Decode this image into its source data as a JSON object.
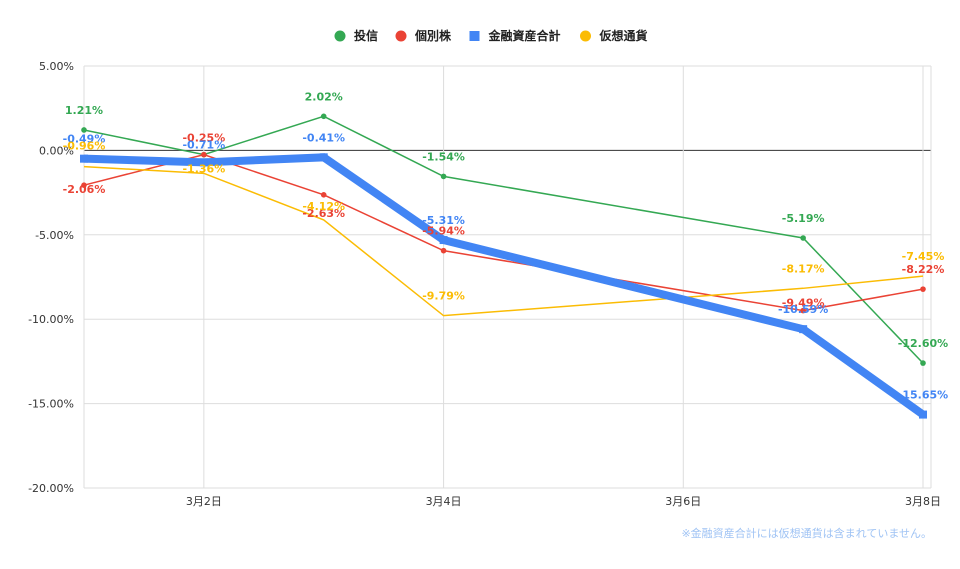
{
  "chart_data": {
    "type": "line",
    "ylim": [
      -20,
      5
    ],
    "y_ticks": [
      5,
      0,
      -5,
      -10,
      -15,
      -20
    ],
    "y_tick_labels": [
      "5.00%",
      "0.00%",
      "-5.00%",
      "-10.00%",
      "-15.00%",
      "-20.00%"
    ],
    "x_ticks": [
      2,
      4,
      6,
      8
    ],
    "x_tick_labels": [
      "3月2日",
      "3月4日",
      "3月6日",
      "3月8日"
    ],
    "xlim": [
      1,
      8
    ],
    "x": [
      1,
      2,
      3,
      4,
      7,
      8
    ],
    "grid": true,
    "legend_position": "top",
    "series": [
      {
        "name": "投信",
        "color": "#34a853",
        "width": 1.5,
        "marker": "circle",
        "values": [
          1.21,
          -0.25,
          2.02,
          -1.54,
          -5.19,
          -12.6
        ],
        "labels": [
          "1.21%",
          "",
          "2.02%",
          "-1.54%",
          "-5.19%",
          "-12.60%"
        ]
      },
      {
        "name": "個別株",
        "color": "#ea4335",
        "width": 1.5,
        "marker": "circle",
        "values": [
          -2.06,
          -0.25,
          -2.63,
          -5.94,
          -9.49,
          -8.22
        ],
        "labels": [
          "-2.06%",
          "-0.25%",
          "-2.63%",
          "-5.94%",
          "-9.49%",
          "-8.22%"
        ]
      },
      {
        "name": "金融資産合計",
        "color": "#4285f4",
        "width": 8,
        "marker": "square",
        "values": [
          -0.49,
          -0.71,
          -0.41,
          -5.31,
          -10.59,
          -15.65
        ],
        "labels": [
          "-0.49%",
          "-0.71%",
          "-0.41%",
          "-5.31%",
          "-10.59%",
          "-15.65%"
        ]
      },
      {
        "name": "仮想通貨",
        "color": "#fbbc04",
        "width": 1.5,
        "marker": "none",
        "values": [
          -0.96,
          -1.36,
          -4.12,
          -9.79,
          -8.17,
          -7.45
        ],
        "labels": [
          "-0.96%",
          "-1.36%",
          "-4.12%",
          "-9.79%",
          "-8.17%",
          "-7.45%"
        ]
      }
    ],
    "footnote": "※金融資産合計には仮想通貨は含まれていません。"
  }
}
